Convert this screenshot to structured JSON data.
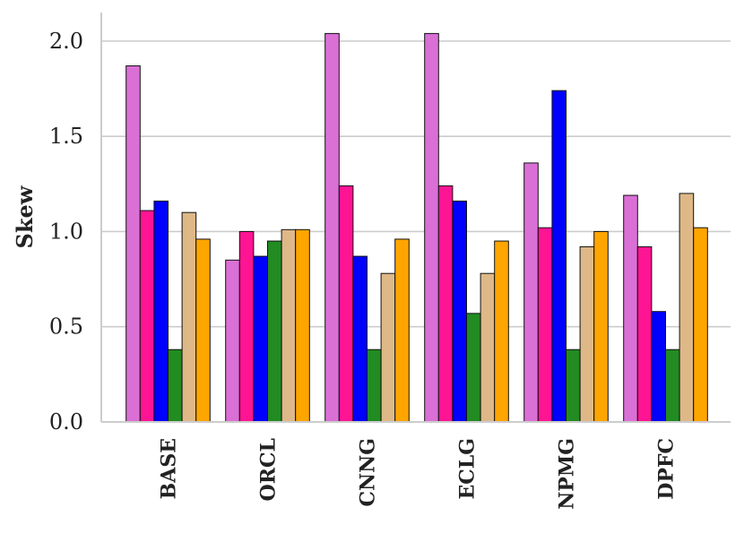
{
  "chart_data": {
    "type": "bar",
    "title": "",
    "xlabel": "",
    "ylabel": "Skew",
    "ylim": [
      0,
      2.15
    ],
    "yticks": [
      "0.0",
      "0.5",
      "1.0",
      "1.5",
      "2.0"
    ],
    "grid": "horizontal",
    "categories": [
      "BASE",
      "ORCL",
      "CNNG",
      "ECLG",
      "NPMG",
      "DPFC"
    ],
    "series": [
      {
        "color": "#da70d6",
        "values": [
          1.87,
          0.85,
          2.04,
          2.04,
          1.36,
          1.19
        ]
      },
      {
        "color": "#ff1493",
        "values": [
          1.11,
          1.0,
          1.24,
          1.24,
          1.02,
          0.92
        ]
      },
      {
        "color": "#0000ff",
        "values": [
          1.16,
          0.87,
          0.87,
          1.16,
          1.74,
          0.58
        ]
      },
      {
        "color": "#228b22",
        "values": [
          0.38,
          0.95,
          0.38,
          0.57,
          0.38,
          0.38
        ]
      },
      {
        "color": "#deb887",
        "values": [
          1.1,
          1.01,
          0.78,
          0.78,
          0.92,
          1.2
        ]
      },
      {
        "color": "#ffa500",
        "values": [
          0.96,
          1.01,
          0.96,
          0.95,
          1.0,
          1.02
        ]
      }
    ]
  }
}
